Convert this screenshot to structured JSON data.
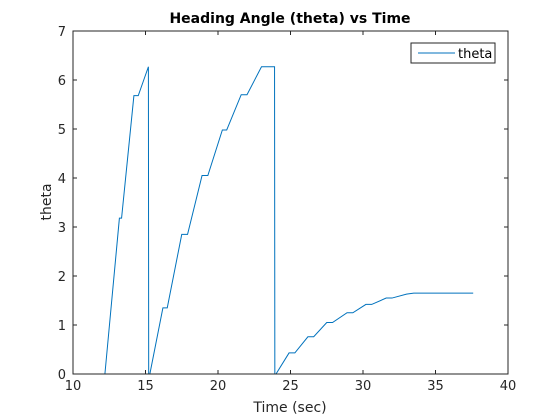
{
  "chart_data": {
    "type": "line",
    "title": "Heading Angle (theta) vs Time",
    "xlabel": "Time (sec)",
    "ylabel": "theta",
    "xlim": [
      10,
      40
    ],
    "ylim": [
      0,
      7
    ],
    "xticks": [
      10,
      15,
      20,
      25,
      30,
      35,
      40
    ],
    "yticks": [
      0,
      1,
      2,
      3,
      4,
      5,
      6,
      7
    ],
    "grid": false,
    "legend": {
      "position": "top-right",
      "entries": [
        "theta"
      ]
    },
    "series": [
      {
        "name": "theta",
        "color": "#0072BD",
        "x": [
          10.0,
          12.2,
          13.2,
          13.35,
          14.2,
          14.5,
          15.2,
          15.2,
          15.22,
          15.3,
          16.2,
          16.5,
          17.5,
          17.9,
          18.9,
          19.3,
          20.3,
          20.6,
          21.6,
          22.0,
          23.0,
          23.6,
          23.9,
          23.92,
          24.0,
          24.9,
          25.3,
          26.2,
          26.6,
          27.5,
          27.9,
          28.9,
          29.3,
          30.2,
          30.6,
          31.6,
          32.0,
          33.0,
          33.5,
          34.0,
          37.6
        ],
        "y": [
          0.0,
          0.0,
          3.18,
          3.18,
          5.68,
          5.68,
          6.27,
          6.27,
          0.0,
          0.0,
          1.35,
          1.35,
          2.85,
          2.85,
          4.05,
          4.05,
          4.98,
          4.98,
          5.7,
          5.7,
          6.27,
          6.27,
          6.27,
          0.0,
          0.0,
          0.43,
          0.43,
          0.76,
          0.76,
          1.05,
          1.05,
          1.25,
          1.25,
          1.42,
          1.42,
          1.55,
          1.55,
          1.63,
          1.65,
          1.65,
          1.65
        ]
      }
    ]
  }
}
